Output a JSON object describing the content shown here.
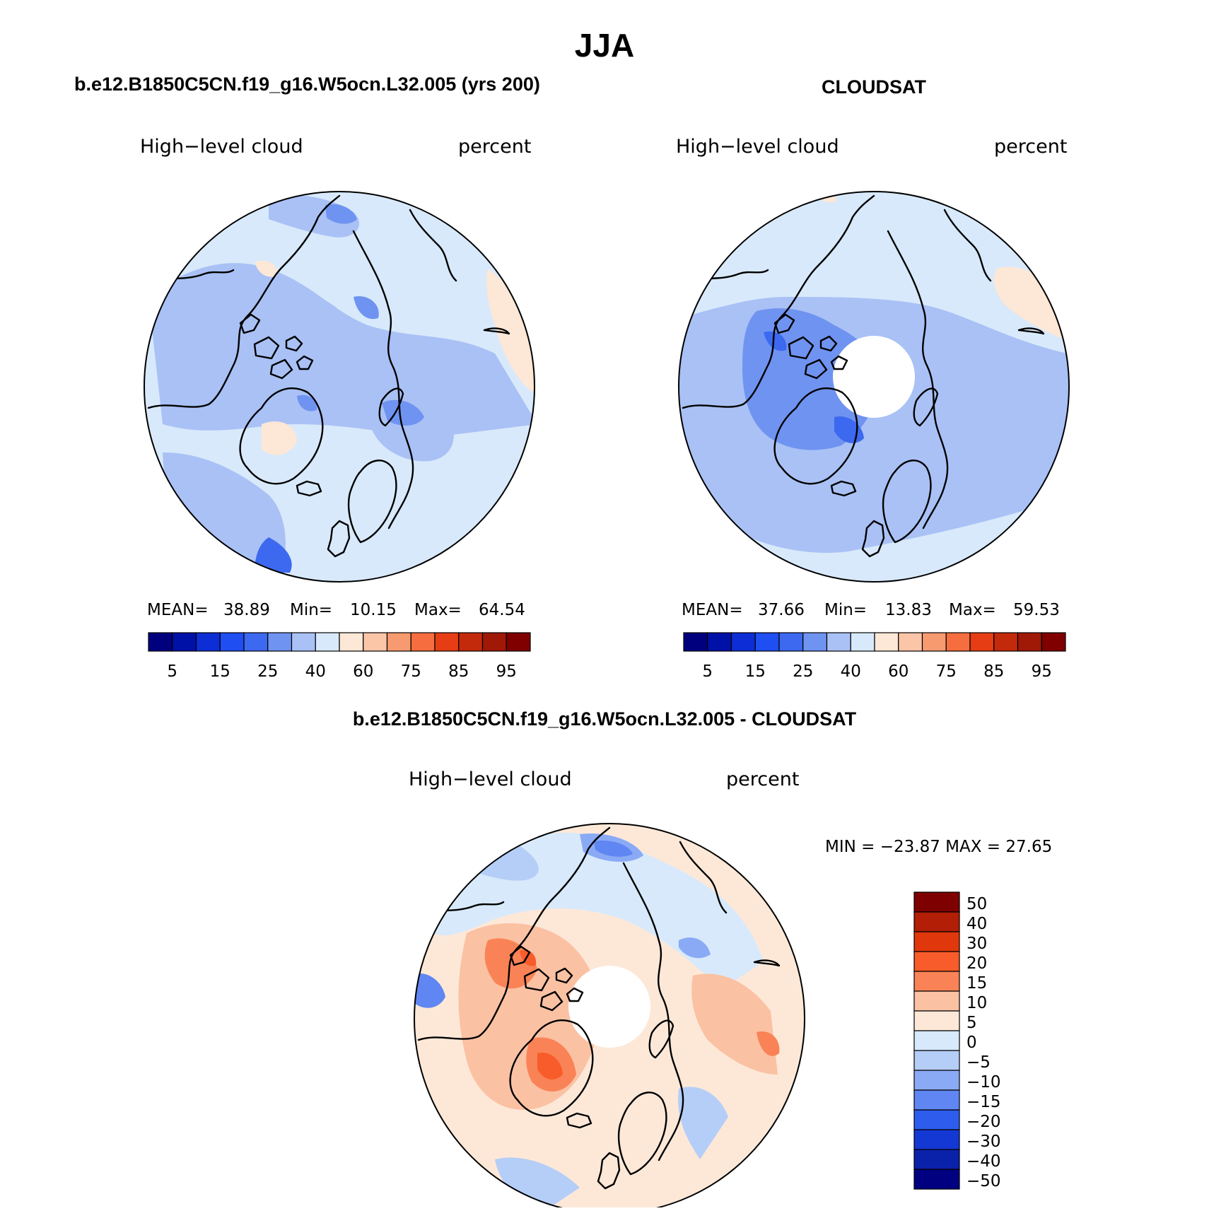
{
  "title": "JJA",
  "panels": [
    {
      "header": "b.e12.B1850C5CN.f19_g16.W5ocn.L32.005 (yrs 200)",
      "variable": "High−level cloud",
      "units": "percent",
      "stats": {
        "mean_label": "MEAN=",
        "mean": "38.89",
        "min_label": "Min=",
        "min": "10.15",
        "max_label": "Max=",
        "max": "64.54"
      }
    },
    {
      "header": "CLOUDSAT",
      "variable": "High−level cloud",
      "units": "percent",
      "stats": {
        "mean_label": "MEAN=",
        "mean": "37.66",
        "min_label": "Min=",
        "min": "13.83",
        "max_label": "Max=",
        "max": "59.53"
      }
    },
    {
      "header": "b.e12.B1850C5CN.f19_g16.W5ocn.L32.005 - CLOUDSAT",
      "variable": "High−level cloud",
      "units": "percent",
      "minmax": "MIN = −23.87 MAX =   27.65"
    }
  ],
  "colorbar_top": {
    "colors": [
      "#00007f",
      "#0011a8",
      "#0d2ed6",
      "#1f4ef2",
      "#3c69ef",
      "#6f93f0",
      "#a9c1f5",
      "#d8e9fb",
      "#fde7d6",
      "#fbc5a7",
      "#f89a70",
      "#f66e3f",
      "#e63d14",
      "#c32a0b",
      "#a01806",
      "#800000"
    ],
    "labels": [
      "5",
      "15",
      "25",
      "40",
      "60",
      "75",
      "85",
      "95"
    ]
  },
  "colorbar_diff": {
    "colors": [
      "#7f0000",
      "#b21e06",
      "#e0380c",
      "#f85c2a",
      "#f98356",
      "#fbc1a3",
      "#fde8d8",
      "#d8e9fb",
      "#b5cef8",
      "#8aaaf5",
      "#5f86f2",
      "#2e5ded",
      "#1438d4",
      "#0a22aa",
      "#000080"
    ],
    "labels": [
      "50",
      "40",
      "30",
      "20",
      "15",
      "10",
      "5",
      "0",
      "−5",
      "−10",
      "−15",
      "−20",
      "−30",
      "−40",
      "−50"
    ]
  },
  "chart_data": {
    "type": "map",
    "projection": "north polar stereographic",
    "season": "JJA",
    "variable": "High-level cloud",
    "units": "percent",
    "maps": [
      {
        "name": "b.e12.B1850C5CN.f19_g16.W5ocn.L32.005 (yrs 200)",
        "mean": 38.89,
        "min": 10.15,
        "max": 64.54,
        "levels": [
          5,
          10,
          15,
          20,
          25,
          30,
          40,
          50,
          60,
          70,
          75,
          80,
          85,
          90,
          95
        ]
      },
      {
        "name": "CLOUDSAT",
        "mean": 37.66,
        "min": 13.83,
        "max": 59.53,
        "levels": [
          5,
          10,
          15,
          20,
          25,
          30,
          40,
          50,
          60,
          70,
          75,
          80,
          85,
          90,
          95
        ]
      },
      {
        "name": "b.e12.B1850C5CN.f19_g16.W5ocn.L32.005 - CLOUDSAT",
        "min": -23.87,
        "max": 27.65,
        "levels": [
          -50,
          -40,
          -30,
          -20,
          -15,
          -10,
          -5,
          0,
          5,
          10,
          15,
          20,
          30,
          40,
          50
        ]
      }
    ],
    "colors": {
      "low": "#00007f",
      "mid_low": "#6f93f0",
      "near_zero_neg": "#d8e9fb",
      "near_zero_pos": "#fde8d8",
      "mid_high": "#f98356",
      "high": "#7f0000"
    }
  }
}
